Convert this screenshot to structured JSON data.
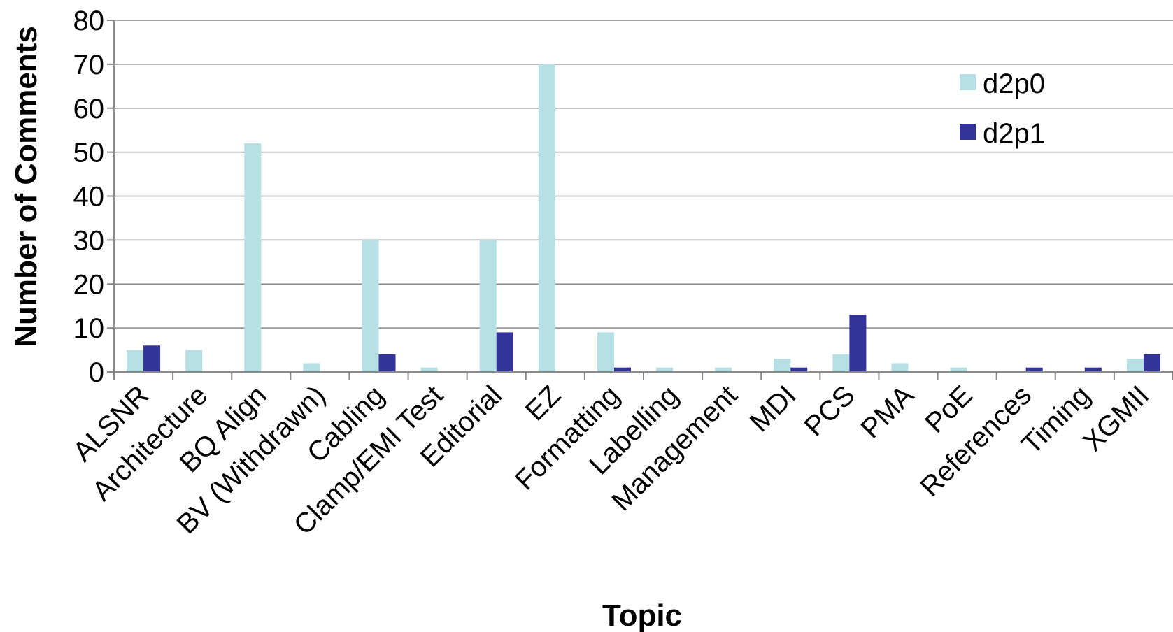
{
  "chart_data": {
    "type": "bar",
    "title": "",
    "xlabel": "Topic",
    "ylabel": "Number of Comments",
    "ylim": [
      0,
      80
    ],
    "yticks": [
      0,
      10,
      20,
      30,
      40,
      50,
      60,
      70,
      80
    ],
    "grid": true,
    "legend_position": "top-right",
    "categories": [
      "ALSNR",
      "Architecture",
      "BQ Align",
      "BV (Withdrawn)",
      "Cabling",
      "Clamp/EMI Test",
      "Editorial",
      "EZ",
      "Formatting",
      "Labelling",
      "Management",
      "MDI",
      "PCS",
      "PMA",
      "PoE",
      "References",
      "Timing",
      "XGMII"
    ],
    "series": [
      {
        "name": "d2p0",
        "color": "#b7e0e4",
        "values": [
          5,
          5,
          52,
          2,
          30,
          1,
          30,
          70,
          9,
          1,
          1,
          3,
          4,
          2,
          1,
          0,
          0,
          3
        ]
      },
      {
        "name": "d2p1",
        "color": "#33339a",
        "values": [
          6,
          0,
          0,
          0,
          4,
          0,
          9,
          0,
          1,
          0,
          0,
          1,
          13,
          0,
          0,
          1,
          1,
          4
        ]
      }
    ]
  }
}
